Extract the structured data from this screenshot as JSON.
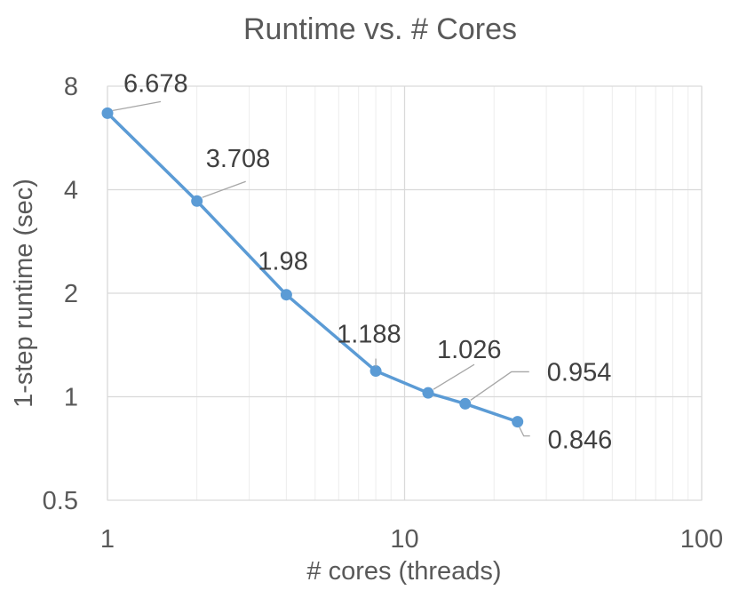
{
  "chart_data": {
    "type": "line",
    "title": "Runtime vs. # Cores",
    "xlabel": "# cores (threads)",
    "ylabel": "1-step runtime (sec)",
    "x_scale": "log",
    "y_scale": "log",
    "xlim": [
      1,
      100
    ],
    "ylim": [
      0.5,
      8
    ],
    "x_ticks": [
      "1",
      "10",
      "100"
    ],
    "y_ticks": [
      "0.5",
      "1",
      "2",
      "4",
      "8"
    ],
    "grid": true,
    "legend": "none",
    "series": [
      {
        "color": "#5B9BD5",
        "x": [
          1,
          2,
          4,
          8,
          12,
          16,
          24
        ],
        "y": [
          6.678,
          3.708,
          1.98,
          1.188,
          1.026,
          0.954,
          0.846
        ],
        "labels": [
          "6.678",
          "3.708",
          "1.98",
          "1.188",
          "1.026",
          "0.954",
          "0.846"
        ]
      }
    ]
  }
}
